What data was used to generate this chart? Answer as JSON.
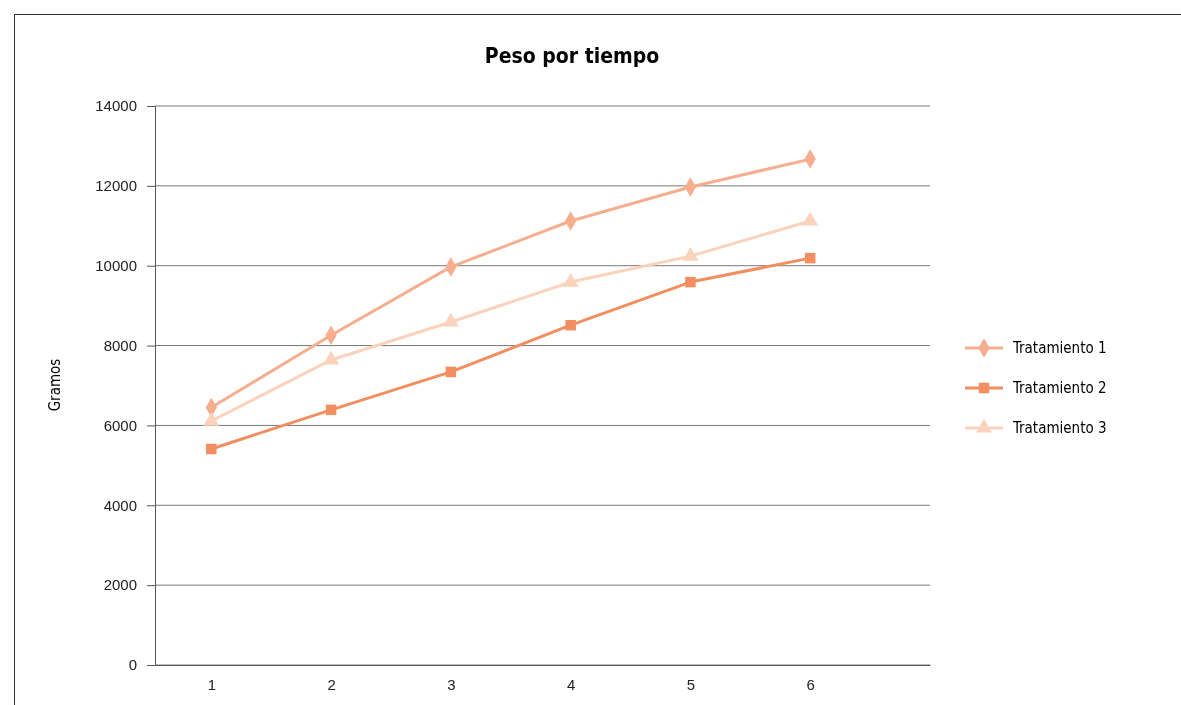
{
  "chart_data": {
    "type": "line",
    "title": "Peso por tiempo",
    "ylabel": "Gramos",
    "x": [
      1,
      2,
      3,
      4,
      5,
      6
    ],
    "xlim": [
      0.53,
      7
    ],
    "xticks": [
      1,
      2,
      3,
      4,
      5,
      6
    ],
    "ylim": [
      0,
      14000
    ],
    "yticks": [
      0,
      2000,
      4000,
      6000,
      8000,
      10000,
      12000,
      14000
    ],
    "grid": "y",
    "legend": "right",
    "series": [
      {
        "name": "Tratamiento 1",
        "color": "#f6ae8e",
        "marker": "diamond",
        "values": [
          6450,
          8260,
          9970,
          11120,
          11970,
          12670
        ]
      },
      {
        "name": "Tratamiento 2",
        "color": "#f28e60",
        "marker": "square",
        "values": [
          5410,
          6390,
          7340,
          8510,
          9590,
          10190
        ]
      },
      {
        "name": "Tratamiento 3",
        "color": "#fbd2bc",
        "marker": "triangle",
        "values": [
          6110,
          7640,
          8590,
          9590,
          10240,
          11120
        ]
      }
    ]
  }
}
